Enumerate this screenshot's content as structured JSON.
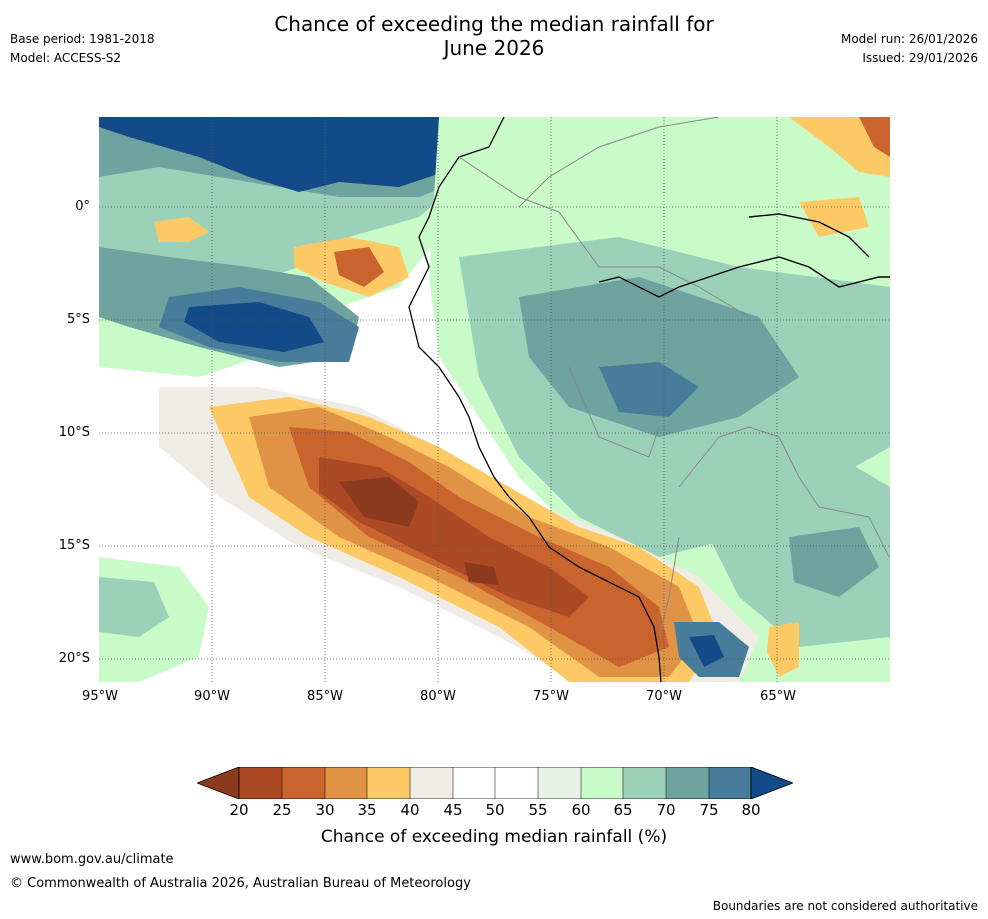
{
  "header": {
    "title_line1": "Chance of exceeding the median rainfall for",
    "title_line2": "June 2026",
    "base_period": "Base period: 1981-2018",
    "model": "Model: ACCESS-S2",
    "model_run": "Model run: 26/01/2026",
    "issued": "Issued: 29/01/2026"
  },
  "map": {
    "lat_ticks": [
      "0°",
      "5°S",
      "10°S",
      "15°S",
      "20°S"
    ],
    "lon_ticks": [
      "95°W",
      "90°W",
      "85°W",
      "80°W",
      "75°W",
      "70°W",
      "65°W"
    ]
  },
  "colorbar": {
    "ticks": [
      "20",
      "25",
      "30",
      "35",
      "40",
      "45",
      "50",
      "55",
      "60",
      "65",
      "70",
      "75",
      "80"
    ],
    "label": "Chance of exceeding median rainfall (%)",
    "colors": {
      "below20": "#8c3a1d",
      "c20_25": "#ad4a26",
      "c25_30": "#c9642f",
      "c30_35": "#e09344",
      "c35_40": "#fdc964",
      "c40_45": "#efebe5",
      "c45_50": "#ffffff",
      "c50_55": "#ffffff",
      "c55_60": "#e7f3e7",
      "c60_65": "#c9fbc8",
      "c65_70": "#9bd1b9",
      "c70_75": "#6ea39f",
      "c75_80": "#477d9b",
      "above80": "#124b87"
    }
  },
  "footer": {
    "url": "www.bom.gov.au/climate",
    "copyright": "© Commonwealth of Australia 2026, Australian Bureau of Meteorology",
    "disclaimer": "Boundaries are not considered authoritative"
  }
}
